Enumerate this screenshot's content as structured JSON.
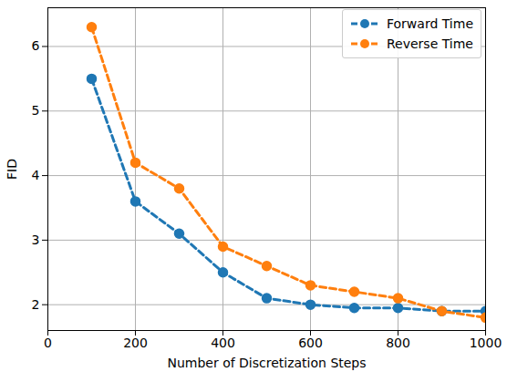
{
  "chart_data": {
    "type": "line",
    "x_label": "Number of Discretization Steps",
    "y_label": "FID",
    "x": [
      100,
      200,
      300,
      400,
      500,
      600,
      700,
      800,
      900,
      1000
    ],
    "series": [
      {
        "name": "Forward Time",
        "color": "#1f77b4",
        "values": [
          5.5,
          3.6,
          3.1,
          2.5,
          2.1,
          2.0,
          1.95,
          1.95,
          1.9,
          1.9
        ]
      },
      {
        "name": "Reverse Time",
        "color": "#ff7f0e",
        "values": [
          6.3,
          4.2,
          3.8,
          2.9,
          2.6,
          2.3,
          2.2,
          2.1,
          1.9,
          1.8
        ]
      }
    ],
    "xlim": [
      0,
      1000
    ],
    "xticks": [
      0,
      200,
      400,
      600,
      800,
      1000
    ],
    "ylim": [
      1.6,
      6.6
    ],
    "yticks": [
      2,
      3,
      4,
      5,
      6
    ],
    "grid": true,
    "legend": "upper right",
    "marker": "o",
    "line_style": "dashed"
  }
}
